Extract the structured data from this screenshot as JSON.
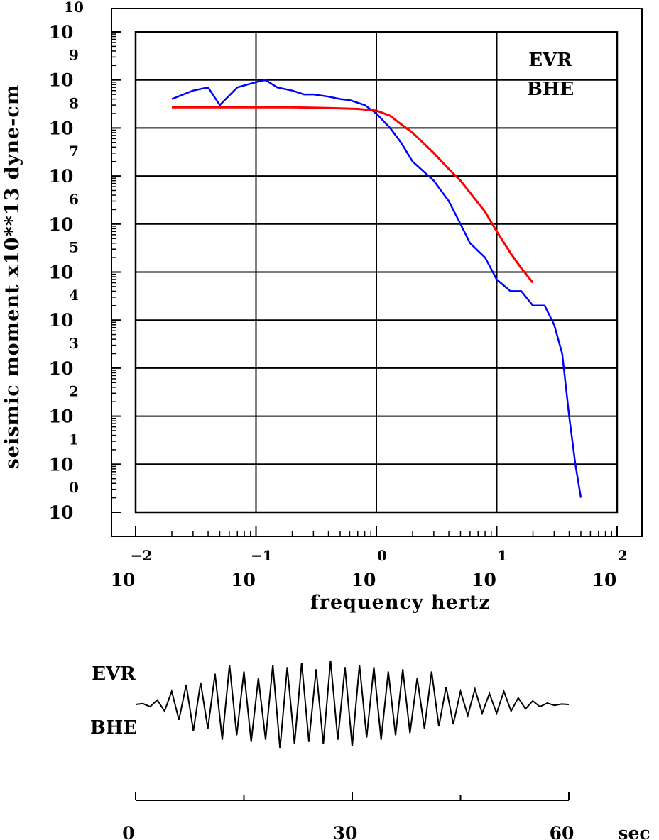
{
  "chart_data": [
    {
      "type": "line",
      "xlabel": "frequency hertz",
      "ylabel": "seismic moment x10**13 dyne-cm",
      "x_scale": "log",
      "y_scale": "log",
      "xlim": [
        0.01,
        100
      ],
      "ylim": [
        1,
        10000000000
      ],
      "x_ticks": [
        {
          "base": "10",
          "exp": "-2"
        },
        {
          "base": "10",
          "exp": "-1"
        },
        {
          "base": "10",
          "exp": "0"
        },
        {
          "base": "10",
          "exp": "1"
        },
        {
          "base": "10",
          "exp": "2"
        }
      ],
      "y_ticks": [
        {
          "base": "10",
          "exp": "0"
        },
        {
          "base": "10",
          "exp": "1"
        },
        {
          "base": "10",
          "exp": "2"
        },
        {
          "base": "10",
          "exp": "3"
        },
        {
          "base": "10",
          "exp": "4"
        },
        {
          "base": "10",
          "exp": "5"
        },
        {
          "base": "10",
          "exp": "6"
        },
        {
          "base": "10",
          "exp": "7"
        },
        {
          "base": "10",
          "exp": "8"
        },
        {
          "base": "10",
          "exp": "9"
        },
        {
          "base": "10",
          "exp": "10"
        }
      ],
      "grid": true,
      "annotations": [
        "EVR",
        "BHE"
      ],
      "series": [
        {
          "color": "#0000ff",
          "style": "noisy observed spectrum",
          "x": [
            0.02,
            0.03,
            0.04,
            0.05,
            0.07,
            0.1,
            0.12,
            0.15,
            0.2,
            0.25,
            0.3,
            0.4,
            0.5,
            0.6,
            0.8,
            1.0,
            1.3,
            1.6,
            2,
            3,
            4,
            5,
            6,
            8,
            10,
            13,
            16,
            20,
            25,
            30,
            35,
            40,
            45,
            50
          ],
          "y": [
            400000000,
            600000000,
            700000000,
            300000000,
            700000000,
            900000000,
            1000000000,
            700000000,
            600000000,
            500000000,
            500000000,
            450000000,
            400000000,
            380000000,
            300000000,
            200000000,
            100000000,
            50000000,
            20000000,
            8000000,
            3000000,
            1000000,
            400000,
            200000,
            70000,
            40000,
            40000,
            20000,
            20000,
            8000,
            2000,
            100,
            10,
            2
          ]
        },
        {
          "color": "#ff0000",
          "style": "smooth model fit",
          "x": [
            0.02,
            0.05,
            0.1,
            0.2,
            0.4,
            0.7,
            1.0,
            1.3,
            1.6,
            2,
            3,
            4,
            5,
            6,
            8,
            10,
            13,
            16,
            20
          ],
          "y": [
            270000000,
            270000000,
            270000000,
            270000000,
            260000000,
            250000000,
            230000000,
            180000000,
            120000000,
            80000000,
            30000000,
            14000000,
            8000000,
            4500000,
            1800000,
            700000,
            250000,
            120000,
            60000
          ]
        }
      ]
    },
    {
      "type": "line",
      "xlabel": "sec",
      "xlim": [
        0,
        60
      ],
      "x_ticks": [
        "0",
        "30",
        "60"
      ],
      "annotations": [
        "EVR",
        "BHE"
      ],
      "series": [
        {
          "color": "#000000",
          "style": "seismogram trace",
          "x": [
            0,
            1,
            2,
            3,
            4,
            5,
            6,
            7,
            8,
            9,
            10,
            11,
            12,
            13,
            14,
            15,
            16,
            17,
            18,
            19,
            20,
            21,
            22,
            23,
            24,
            25,
            26,
            27,
            28,
            29,
            30,
            31,
            32,
            33,
            34,
            35,
            36,
            37,
            38,
            39,
            40,
            41,
            42,
            43,
            44,
            45,
            46,
            47,
            48,
            49,
            50,
            51,
            52,
            53,
            54,
            55,
            56,
            57,
            58,
            59,
            60
          ],
          "y": [
            0,
            0.02,
            -0.05,
            0.1,
            -0.15,
            0.3,
            -0.35,
            0.45,
            -0.6,
            0.5,
            -0.55,
            0.7,
            -0.8,
            0.9,
            -0.7,
            0.75,
            -0.85,
            0.6,
            -0.8,
            0.9,
            -1.0,
            0.85,
            -0.9,
            0.95,
            -0.85,
            0.8,
            -0.9,
            1.0,
            -0.8,
            0.85,
            -0.95,
            0.9,
            -0.75,
            0.85,
            -0.8,
            0.75,
            -0.7,
            0.8,
            -0.65,
            0.6,
            -0.55,
            0.75,
            -0.5,
            0.4,
            -0.45,
            0.3,
            -0.25,
            0.35,
            -0.2,
            0.25,
            -0.2,
            0.3,
            -0.15,
            0.15,
            -0.1,
            0.08,
            -0.05,
            0.03,
            -0.02,
            0.01,
            0
          ]
        }
      ]
    }
  ]
}
